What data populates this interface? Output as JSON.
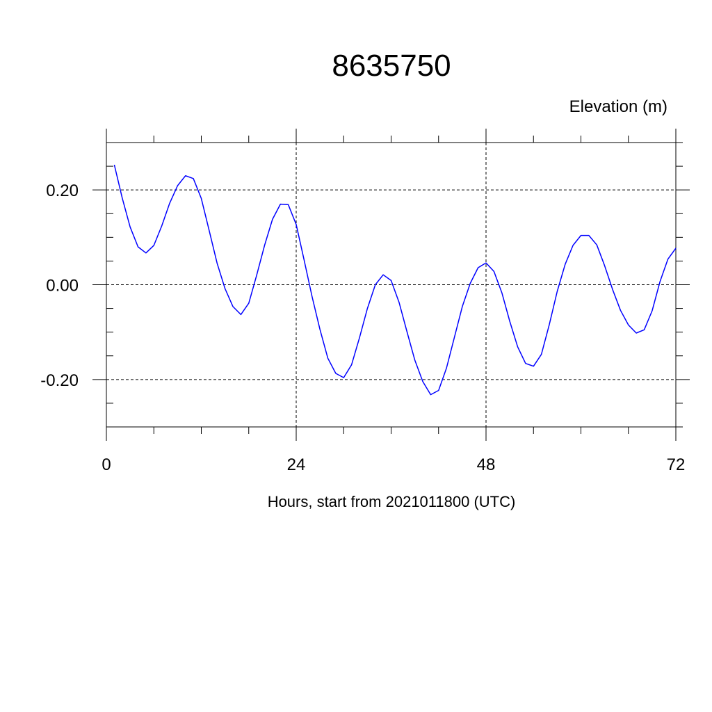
{
  "chart_data": {
    "type": "line",
    "title": "8635750",
    "ylabel": "Elevation (m)",
    "xlabel": "Hours, start from 2021011800 (UTC)",
    "xlim": [
      0,
      72
    ],
    "ylim": [
      -0.3,
      0.3
    ],
    "x_ticks": [
      0,
      24,
      48,
      72
    ],
    "x_tick_labels": [
      "0",
      "24",
      "48",
      "72"
    ],
    "y_ticks": [
      0.2,
      0.0,
      -0.2
    ],
    "y_tick_labels": [
      "0.20",
      "0.00",
      "-0.20"
    ],
    "grid": true,
    "series": [
      {
        "color": "#0000ff",
        "x": [
          1,
          2,
          3,
          4,
          5,
          6,
          7,
          8,
          9,
          10,
          11,
          12,
          13,
          14,
          15,
          16,
          17,
          18,
          19,
          20,
          21,
          22,
          23,
          24,
          25,
          26,
          27,
          28,
          29,
          30,
          31,
          32,
          33,
          34,
          35,
          36,
          37,
          38,
          39,
          40,
          41,
          42,
          43,
          44,
          45,
          46,
          47,
          48,
          49,
          50,
          51,
          52,
          53,
          54,
          55,
          56,
          57,
          58,
          59,
          60,
          61,
          62,
          63,
          64,
          65,
          66,
          67,
          68,
          69,
          70,
          71,
          72
        ],
        "y": [
          0.253,
          0.183,
          0.122,
          0.08,
          0.067,
          0.083,
          0.124,
          0.172,
          0.209,
          0.23,
          0.224,
          0.182,
          0.114,
          0.045,
          -0.008,
          -0.046,
          -0.063,
          -0.039,
          0.02,
          0.083,
          0.138,
          0.17,
          0.169,
          0.127,
          0.052,
          -0.025,
          -0.094,
          -0.155,
          -0.187,
          -0.196,
          -0.169,
          -0.112,
          -0.05,
          0.0,
          0.021,
          0.009,
          -0.037,
          -0.099,
          -0.159,
          -0.204,
          -0.232,
          -0.223,
          -0.176,
          -0.111,
          -0.046,
          0.003,
          0.036,
          0.046,
          0.028,
          -0.017,
          -0.077,
          -0.131,
          -0.166,
          -0.172,
          -0.147,
          -0.084,
          -0.014,
          0.043,
          0.083,
          0.104,
          0.104,
          0.084,
          0.04,
          -0.01,
          -0.054,
          -0.085,
          -0.102,
          -0.095,
          -0.055,
          0.007,
          0.054,
          0.077
        ]
      }
    ]
  }
}
